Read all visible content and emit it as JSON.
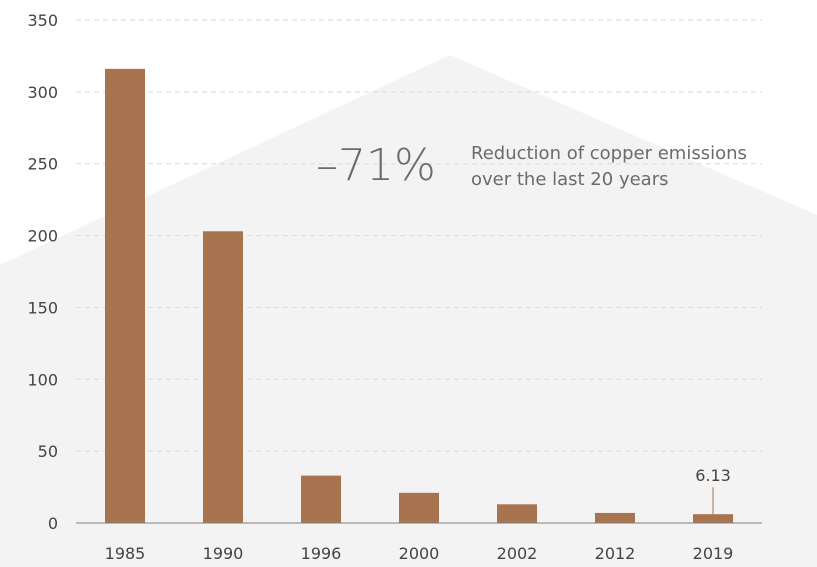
{
  "chart_data": {
    "type": "bar",
    "categories": [
      "1985",
      "1990",
      "1996",
      "2000",
      "2002",
      "2012",
      "2019"
    ],
    "values": [
      316,
      203,
      33,
      21,
      13,
      7,
      6.13
    ],
    "ylim": [
      0,
      350
    ],
    "yticks": [
      0,
      50,
      100,
      150,
      200,
      250,
      300,
      350
    ],
    "grid": true,
    "bar_color": "#a8734f",
    "data_labels": [
      {
        "category": "2019",
        "text": "6.13"
      }
    ]
  },
  "annotation": {
    "value": "–71%",
    "description_line1": "Reduction of copper emissions",
    "description_line2": "over the last 20 years"
  },
  "colors": {
    "bar": "#a8734f",
    "grid": "#d9d9d9",
    "axis": "#7f7f7f",
    "background_shape": "#f2f2f2",
    "text": "#444444",
    "annotation_text": "#6b6b6b"
  }
}
